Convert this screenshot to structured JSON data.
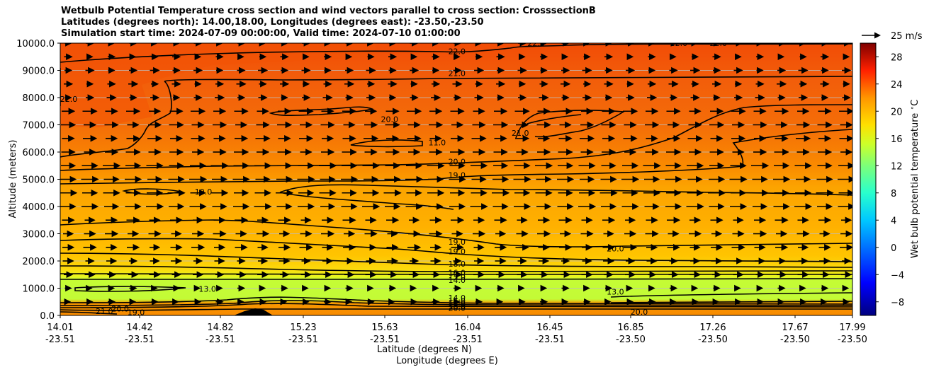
{
  "chart_data": {
    "type": "contour",
    "title_lines": [
      "Wetbulb Potential Temperature cross section and wind vectors parallel to cross section: CrosssectionB",
      "Latitudes (degrees north): 14.00,18.00, Longitudes (degrees east): -23.50,-23.50",
      "Simulation start time: 2024-07-09 00:00:00, Valid time: 2024-07-10 01:00:00"
    ],
    "ylabel": "Altitude (meters)",
    "xlabel_lat": "Latitude (degrees N)",
    "xlabel_lon": "Longitude (degrees E)",
    "ylim": [
      0,
      10000
    ],
    "y_ticks": [
      "0.0",
      "1000.0",
      "2000.0",
      "3000.0",
      "4000.0",
      "5000.0",
      "6000.0",
      "7000.0",
      "8000.0",
      "9000.0",
      "10000.0"
    ],
    "x_ticks": [
      {
        "lat": "14.01",
        "lon": "-23.51"
      },
      {
        "lat": "14.42",
        "lon": "-23.51"
      },
      {
        "lat": "14.82",
        "lon": "-23.51"
      },
      {
        "lat": "15.23",
        "lon": "-23.51"
      },
      {
        "lat": "15.63",
        "lon": "-23.51"
      },
      {
        "lat": "16.04",
        "lon": "-23.51"
      },
      {
        "lat": "16.45",
        "lon": "-23.51"
      },
      {
        "lat": "16.85",
        "lon": "-23.50"
      },
      {
        "lat": "17.26",
        "lon": "-23.50"
      },
      {
        "lat": "17.67",
        "lon": "-23.50"
      },
      {
        "lat": "17.99",
        "lon": "-23.50"
      }
    ],
    "colorbar": {
      "label": "Wet bulb potential temperature $^\\circ$C",
      "range": [
        -10,
        30
      ],
      "ticks": [
        "−8",
        "−4",
        "0",
        "4",
        "8",
        "12",
        "16",
        "20",
        "24",
        "28"
      ]
    },
    "wind_key_label": "25 m/s",
    "contour_labels": [
      {
        "text": "22.0",
        "x": 0.49,
        "y": 9650
      },
      {
        "text": "21.0",
        "x": 0.49,
        "y": 8850
      },
      {
        "text": "22.0",
        "x": 0.59,
        "y": 9950
      },
      {
        "text": "22.0",
        "x": 0.77,
        "y": 9950
      },
      {
        "text": "22.0",
        "x": 0.82,
        "y": 9950
      },
      {
        "text": "22.0",
        "x": 0.0,
        "y": 7900
      },
      {
        "text": "20.0",
        "x": 0.405,
        "y": 7150
      },
      {
        "text": "21.0",
        "x": 0.57,
        "y": 6650
      },
      {
        "text": "11.0",
        "x": 0.465,
        "y": 6300
      },
      {
        "text": "20.0",
        "x": 0.49,
        "y": 5600
      },
      {
        "text": "19.0",
        "x": 0.49,
        "y": 5100
      },
      {
        "text": "19.0",
        "x": 0.17,
        "y": 4500
      },
      {
        "text": "19.0",
        "x": 0.49,
        "y": 2650
      },
      {
        "text": "19.0",
        "x": 0.49,
        "y": 2300
      },
      {
        "text": "20.0",
        "x": 0.69,
        "y": 2400
      },
      {
        "text": "18.0",
        "x": 0.49,
        "y": 1850
      },
      {
        "text": "16.0",
        "x": 0.49,
        "y": 1520
      },
      {
        "text": "15.0",
        "x": 0.49,
        "y": 1370
      },
      {
        "text": "14.0",
        "x": 0.49,
        "y": 1250
      },
      {
        "text": "13.0",
        "x": 0.175,
        "y": 920
      },
      {
        "text": "13.0",
        "x": 0.69,
        "y": 820
      },
      {
        "text": "14.0",
        "x": 0.49,
        "y": 600
      },
      {
        "text": "15.0",
        "x": 0.49,
        "y": 480
      },
      {
        "text": "16.0",
        "x": 0.49,
        "y": 380
      },
      {
        "text": "18.0",
        "x": 0.49,
        "y": 300
      },
      {
        "text": "20.0",
        "x": 0.49,
        "y": 220
      },
      {
        "text": "20.0",
        "x": 0.72,
        "y": 80
      },
      {
        "text": "21.0",
        "x": 0.045,
        "y": 100
      },
      {
        "text": "20.0",
        "x": 0.065,
        "y": 200
      },
      {
        "text": "19.0",
        "x": 0.085,
        "y": 70
      }
    ]
  }
}
